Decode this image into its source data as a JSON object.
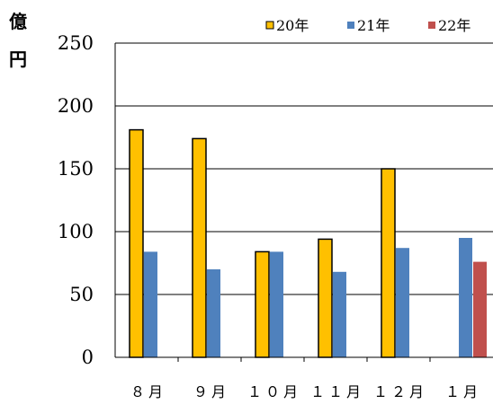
{
  "chart_data": {
    "type": "bar",
    "unit_label": [
      "億",
      "円"
    ],
    "categories": [
      "8月",
      "9月",
      "10月",
      "11月",
      "12月",
      "1月"
    ],
    "category_labels": [
      "８月",
      "９月",
      "１０月",
      "１１月",
      "１２月",
      "１月"
    ],
    "series": [
      {
        "name": "20年",
        "color": "#FFC000",
        "values": [
          181,
          174,
          84,
          94,
          150,
          null
        ]
      },
      {
        "name": "21年",
        "color": "#4F81BD",
        "values": [
          84,
          70,
          84,
          68,
          87,
          95
        ]
      },
      {
        "name": "22年",
        "color": "#C0504D",
        "values": [
          null,
          null,
          null,
          null,
          null,
          76
        ]
      }
    ],
    "ylim": [
      0,
      250
    ],
    "yticks": [
      0,
      50,
      100,
      150,
      200,
      250
    ],
    "grid": true,
    "legend": "top-right"
  }
}
